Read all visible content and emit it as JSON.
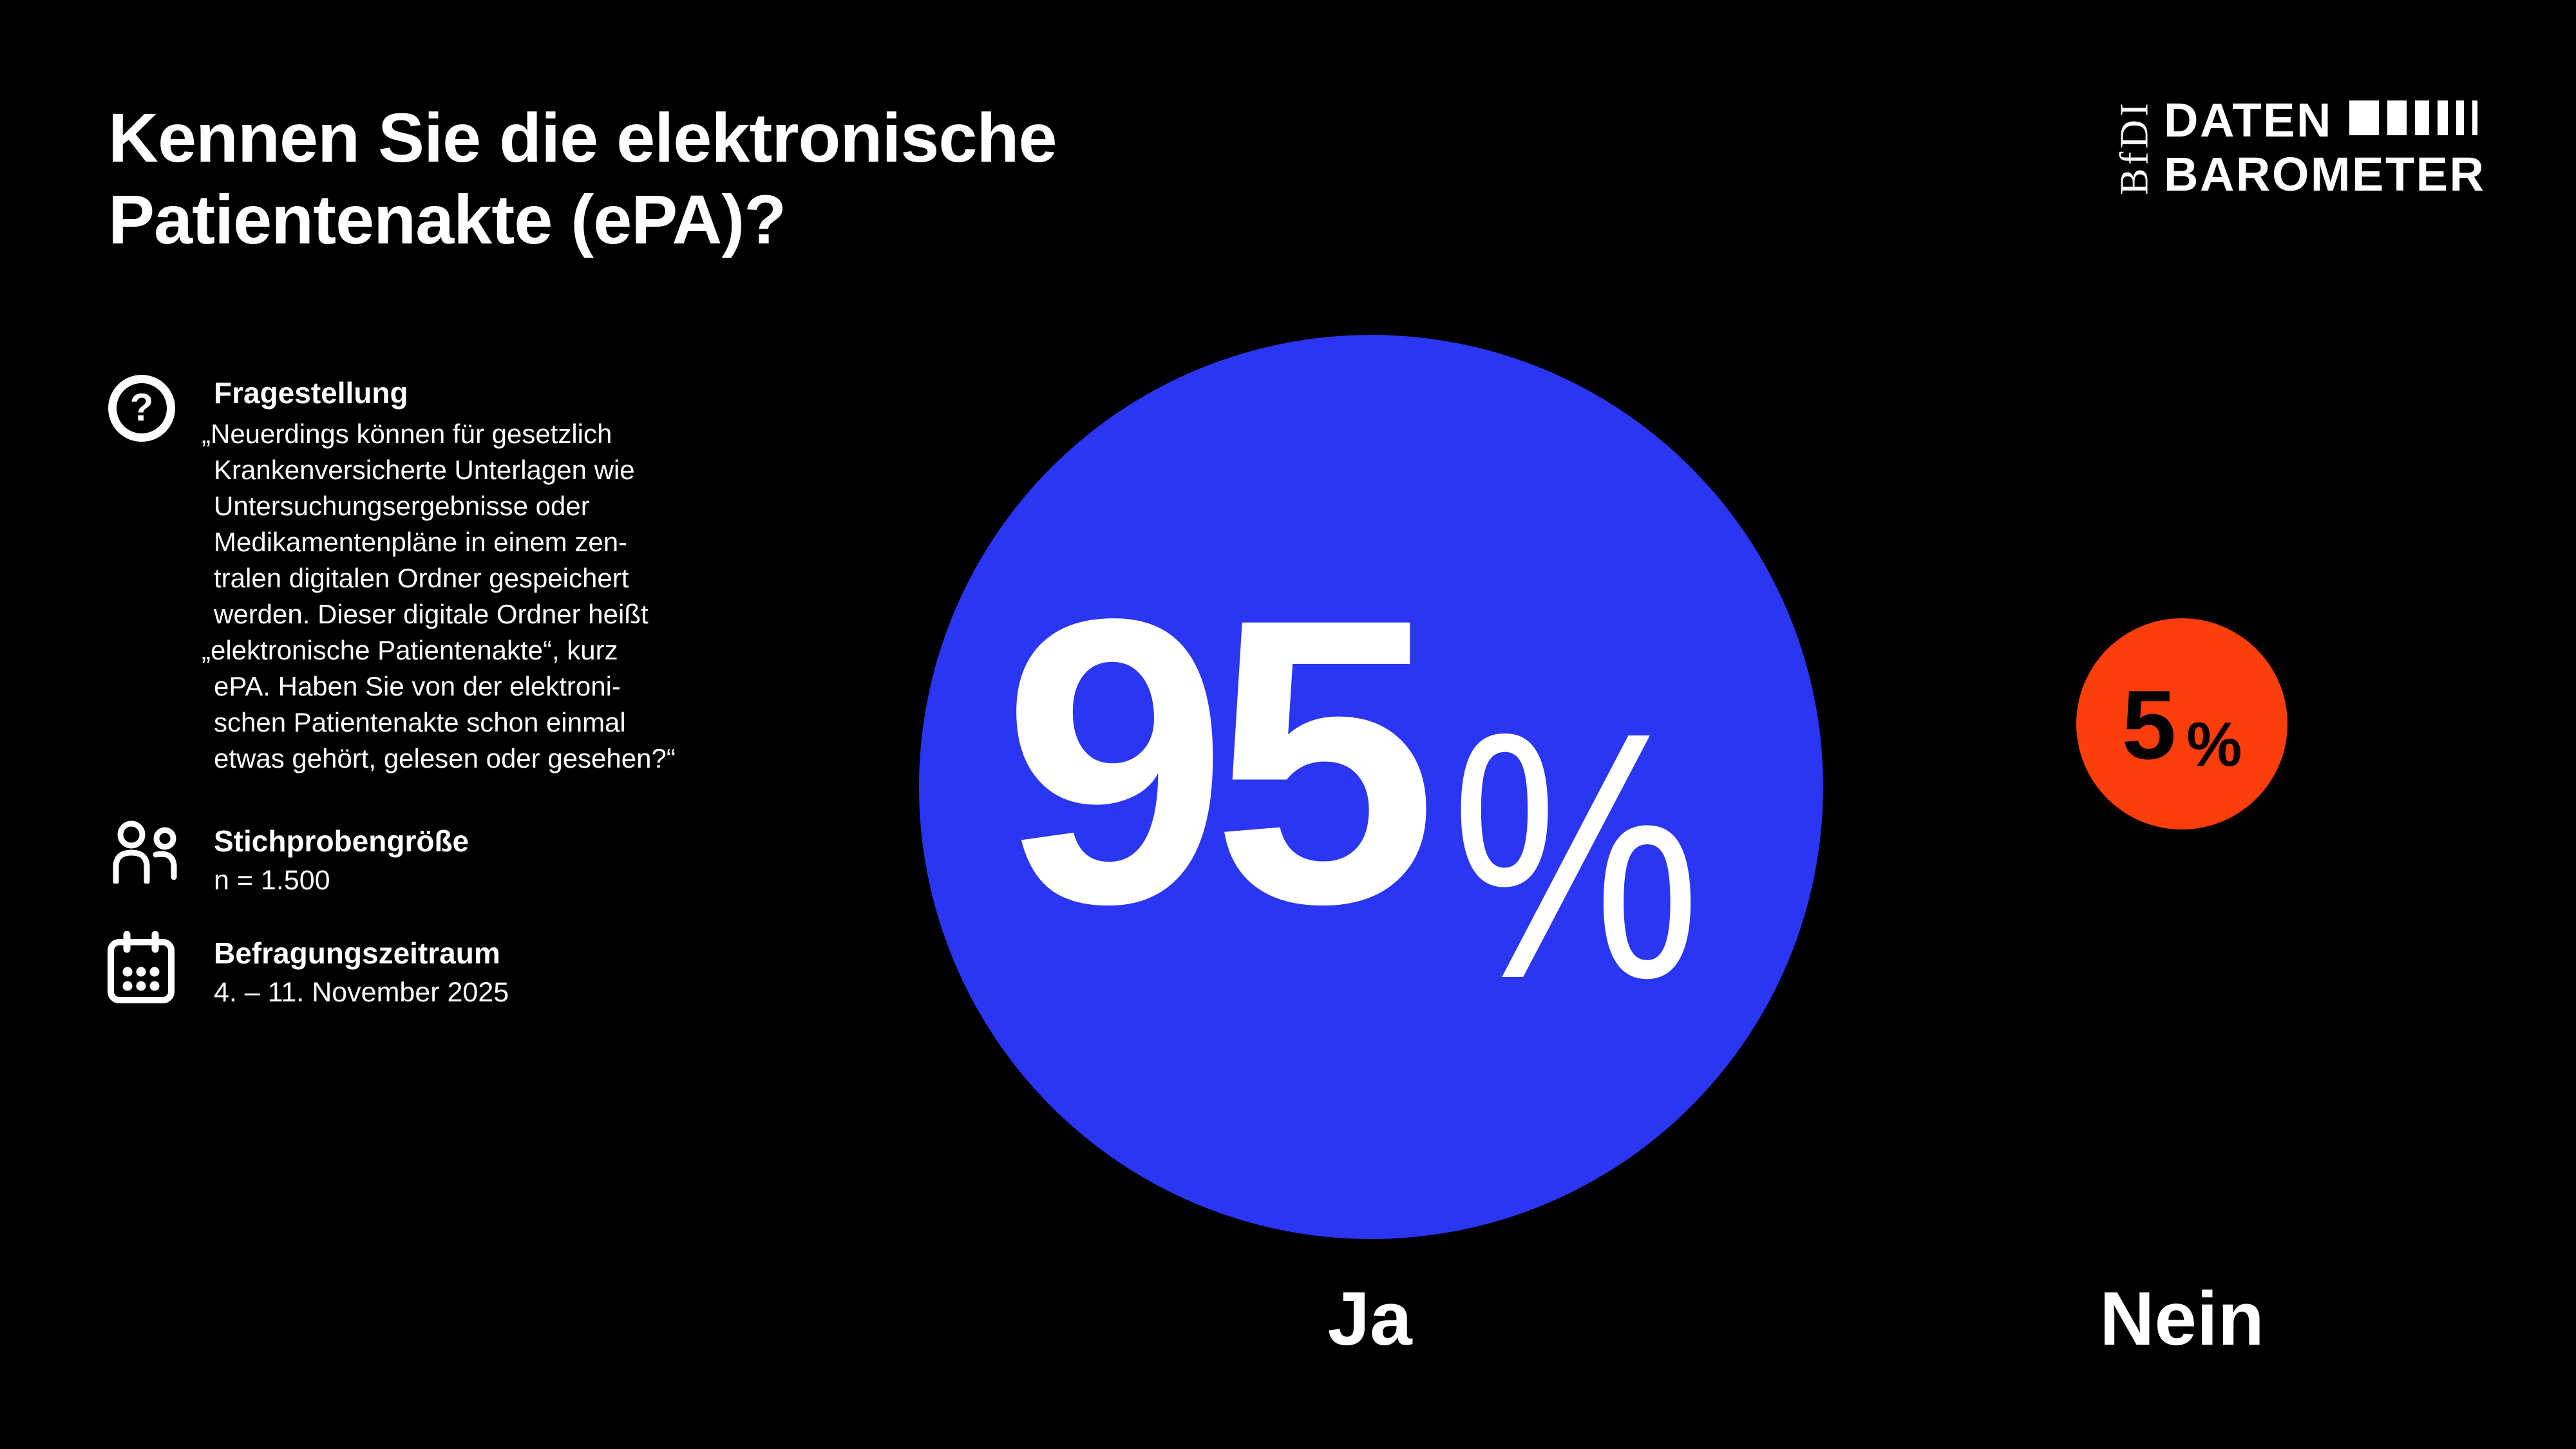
{
  "title": {
    "line1": "Kennen Sie die elektronische",
    "line2": "Patientenakte (ePA)?"
  },
  "logo": {
    "bfdi": "BfDI",
    "daten": "DATEN",
    "barometer": "BAROMETER",
    "bar_widths": [
      46,
      30,
      22,
      16,
      12,
      8
    ]
  },
  "sections": {
    "frage": {
      "icon": "question-mark-icon",
      "glyph": "?",
      "heading": "Fragestellung",
      "lines": [
        "„Neuerdings können für gesetzlich",
        "Krankenversicherte Unterlagen wie",
        "Untersuchungsergebnisse oder",
        "Medikamentenpläne in einem zen-",
        "tralen digitalen Ordner gespeichert",
        "werden. Dieser digitale Ordner heißt",
        "„elektronische Patientenakte“, kurz",
        "ePA. Haben Sie von der elektroni-",
        "schen Patientenakte schon einmal",
        "etwas gehört, gelesen oder gesehen?“"
      ]
    },
    "stichprobe": {
      "icon": "people-icon",
      "heading": "Stichprobengröße",
      "value": "n = 1.500"
    },
    "zeitraum": {
      "icon": "calendar-icon",
      "heading": "Befragungszeitraum",
      "value": "4. – 11. November 2025"
    }
  },
  "chart": {
    "circles": [
      {
        "label": "Ja",
        "value": "95",
        "unit": "%",
        "color": "#2A36F2"
      },
      {
        "label": "Nein",
        "value": "5",
        "unit": "%",
        "color": "#FB3E0A"
      }
    ]
  },
  "chart_data": {
    "type": "pie",
    "variant": "proportional-circles",
    "title": "Kennen Sie die elektronische Patientenakte (ePA)?",
    "categories": [
      "Ja",
      "Nein"
    ],
    "values": [
      95,
      5
    ],
    "unit": "%",
    "colors": [
      "#2A36F2",
      "#FB3E0A"
    ],
    "background": "#000000",
    "sample_size": "n = 1.500",
    "survey_period": "4. – 11. November 2025",
    "question": "„Neuerdings können für gesetzlich Krankenversicherte Unterlagen wie Untersuchungsergebnisse oder Medikamentenpläne in einem zentralen digitalen Ordner gespeichert werden. Dieser digitale Ordner heißt „elektronische Patientenakte“, kurz ePA. Haben Sie von der elektronischen Patientenakte schon einmal etwas gehört, gelesen oder gesehen?“"
  }
}
